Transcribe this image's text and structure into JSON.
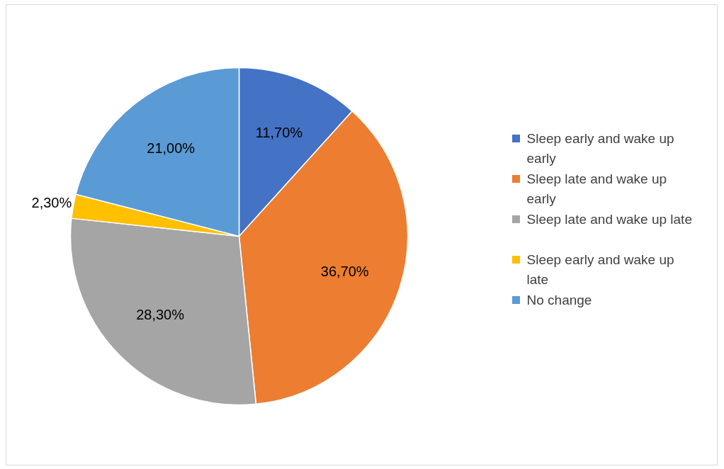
{
  "chart_data": {
    "type": "pie",
    "categories": [
      "Sleep early and wake up early",
      "Sleep late and wake up early",
      "Sleep late and wake up late",
      "Sleep early and wake up late",
      "No change"
    ],
    "values": [
      11.7,
      36.7,
      28.3,
      2.3,
      21.0
    ],
    "colors": [
      "#4472c4",
      "#ed7d31",
      "#a5a5a5",
      "#ffc000",
      "#5b9bd5"
    ],
    "value_labels": [
      "11,70%",
      "36,70%",
      "28,30%",
      "2,30%",
      "21,00%"
    ],
    "legend": "right"
  }
}
